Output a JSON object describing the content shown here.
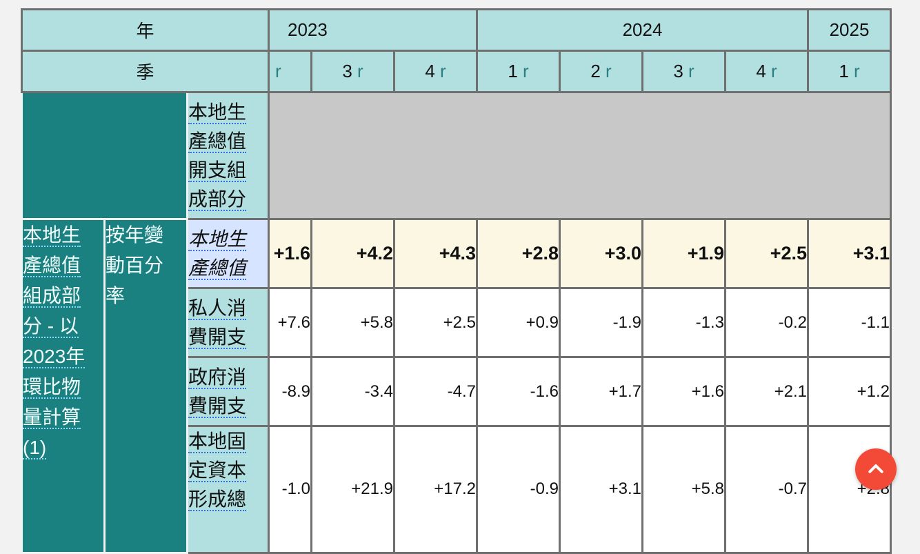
{
  "header": {
    "year_label": "年",
    "quarter_label": "季",
    "years": [
      "2023",
      "2024",
      "2025"
    ],
    "quarters": [
      {
        "num": "",
        "rev": "r"
      },
      {
        "num": "3",
        "rev": "r"
      },
      {
        "num": "4",
        "rev": "r"
      },
      {
        "num": "1",
        "rev": "r"
      },
      {
        "num": "2",
        "rev": "r"
      },
      {
        "num": "3",
        "rev": "r"
      },
      {
        "num": "4",
        "rev": "r"
      },
      {
        "num": "1",
        "rev": "r"
      }
    ]
  },
  "sidebar": {
    "category": "本地生產總值組成部分 - 以2023年環比物量計算 (1)",
    "category_lines": [
      "本地生",
      "產總值",
      "組成部",
      "分 - 以",
      "2023年",
      "環比物",
      "量計算",
      "(1)"
    ],
    "measure_lines": [
      "按年變",
      "動百分",
      "率"
    ]
  },
  "section": {
    "label_lines": [
      "本地生",
      "產總值",
      "開支組",
      "成部分"
    ]
  },
  "rows": [
    {
      "label_lines": [
        "本地生",
        "產總值"
      ],
      "values": [
        "+1.6",
        "+4.2",
        "+4.3",
        "+2.8",
        "+3.0",
        "+1.9",
        "+2.5",
        "+3.1"
      ]
    },
    {
      "label_lines": [
        "私人消",
        "費開支"
      ],
      "values": [
        "+7.6",
        "+5.8",
        "+2.5",
        "+0.9",
        "-1.9",
        "-1.3",
        "-0.2",
        "-1.1"
      ]
    },
    {
      "label_lines": [
        "政府消",
        "費開支"
      ],
      "values": [
        "-8.9",
        "-3.4",
        "-4.7",
        "-1.6",
        "+1.7",
        "+1.6",
        "+2.1",
        "+1.2"
      ]
    },
    {
      "label_lines": [
        "本地固",
        "定資本",
        "形成總"
      ],
      "values": [
        "-1.0",
        "+21.9",
        "+17.2",
        "-0.9",
        "+3.1",
        "+5.8",
        "-0.7",
        "+2.8"
      ]
    }
  ],
  "scroll_top": {
    "icon": "chevron-up-icon",
    "color": "#f24a36"
  }
}
